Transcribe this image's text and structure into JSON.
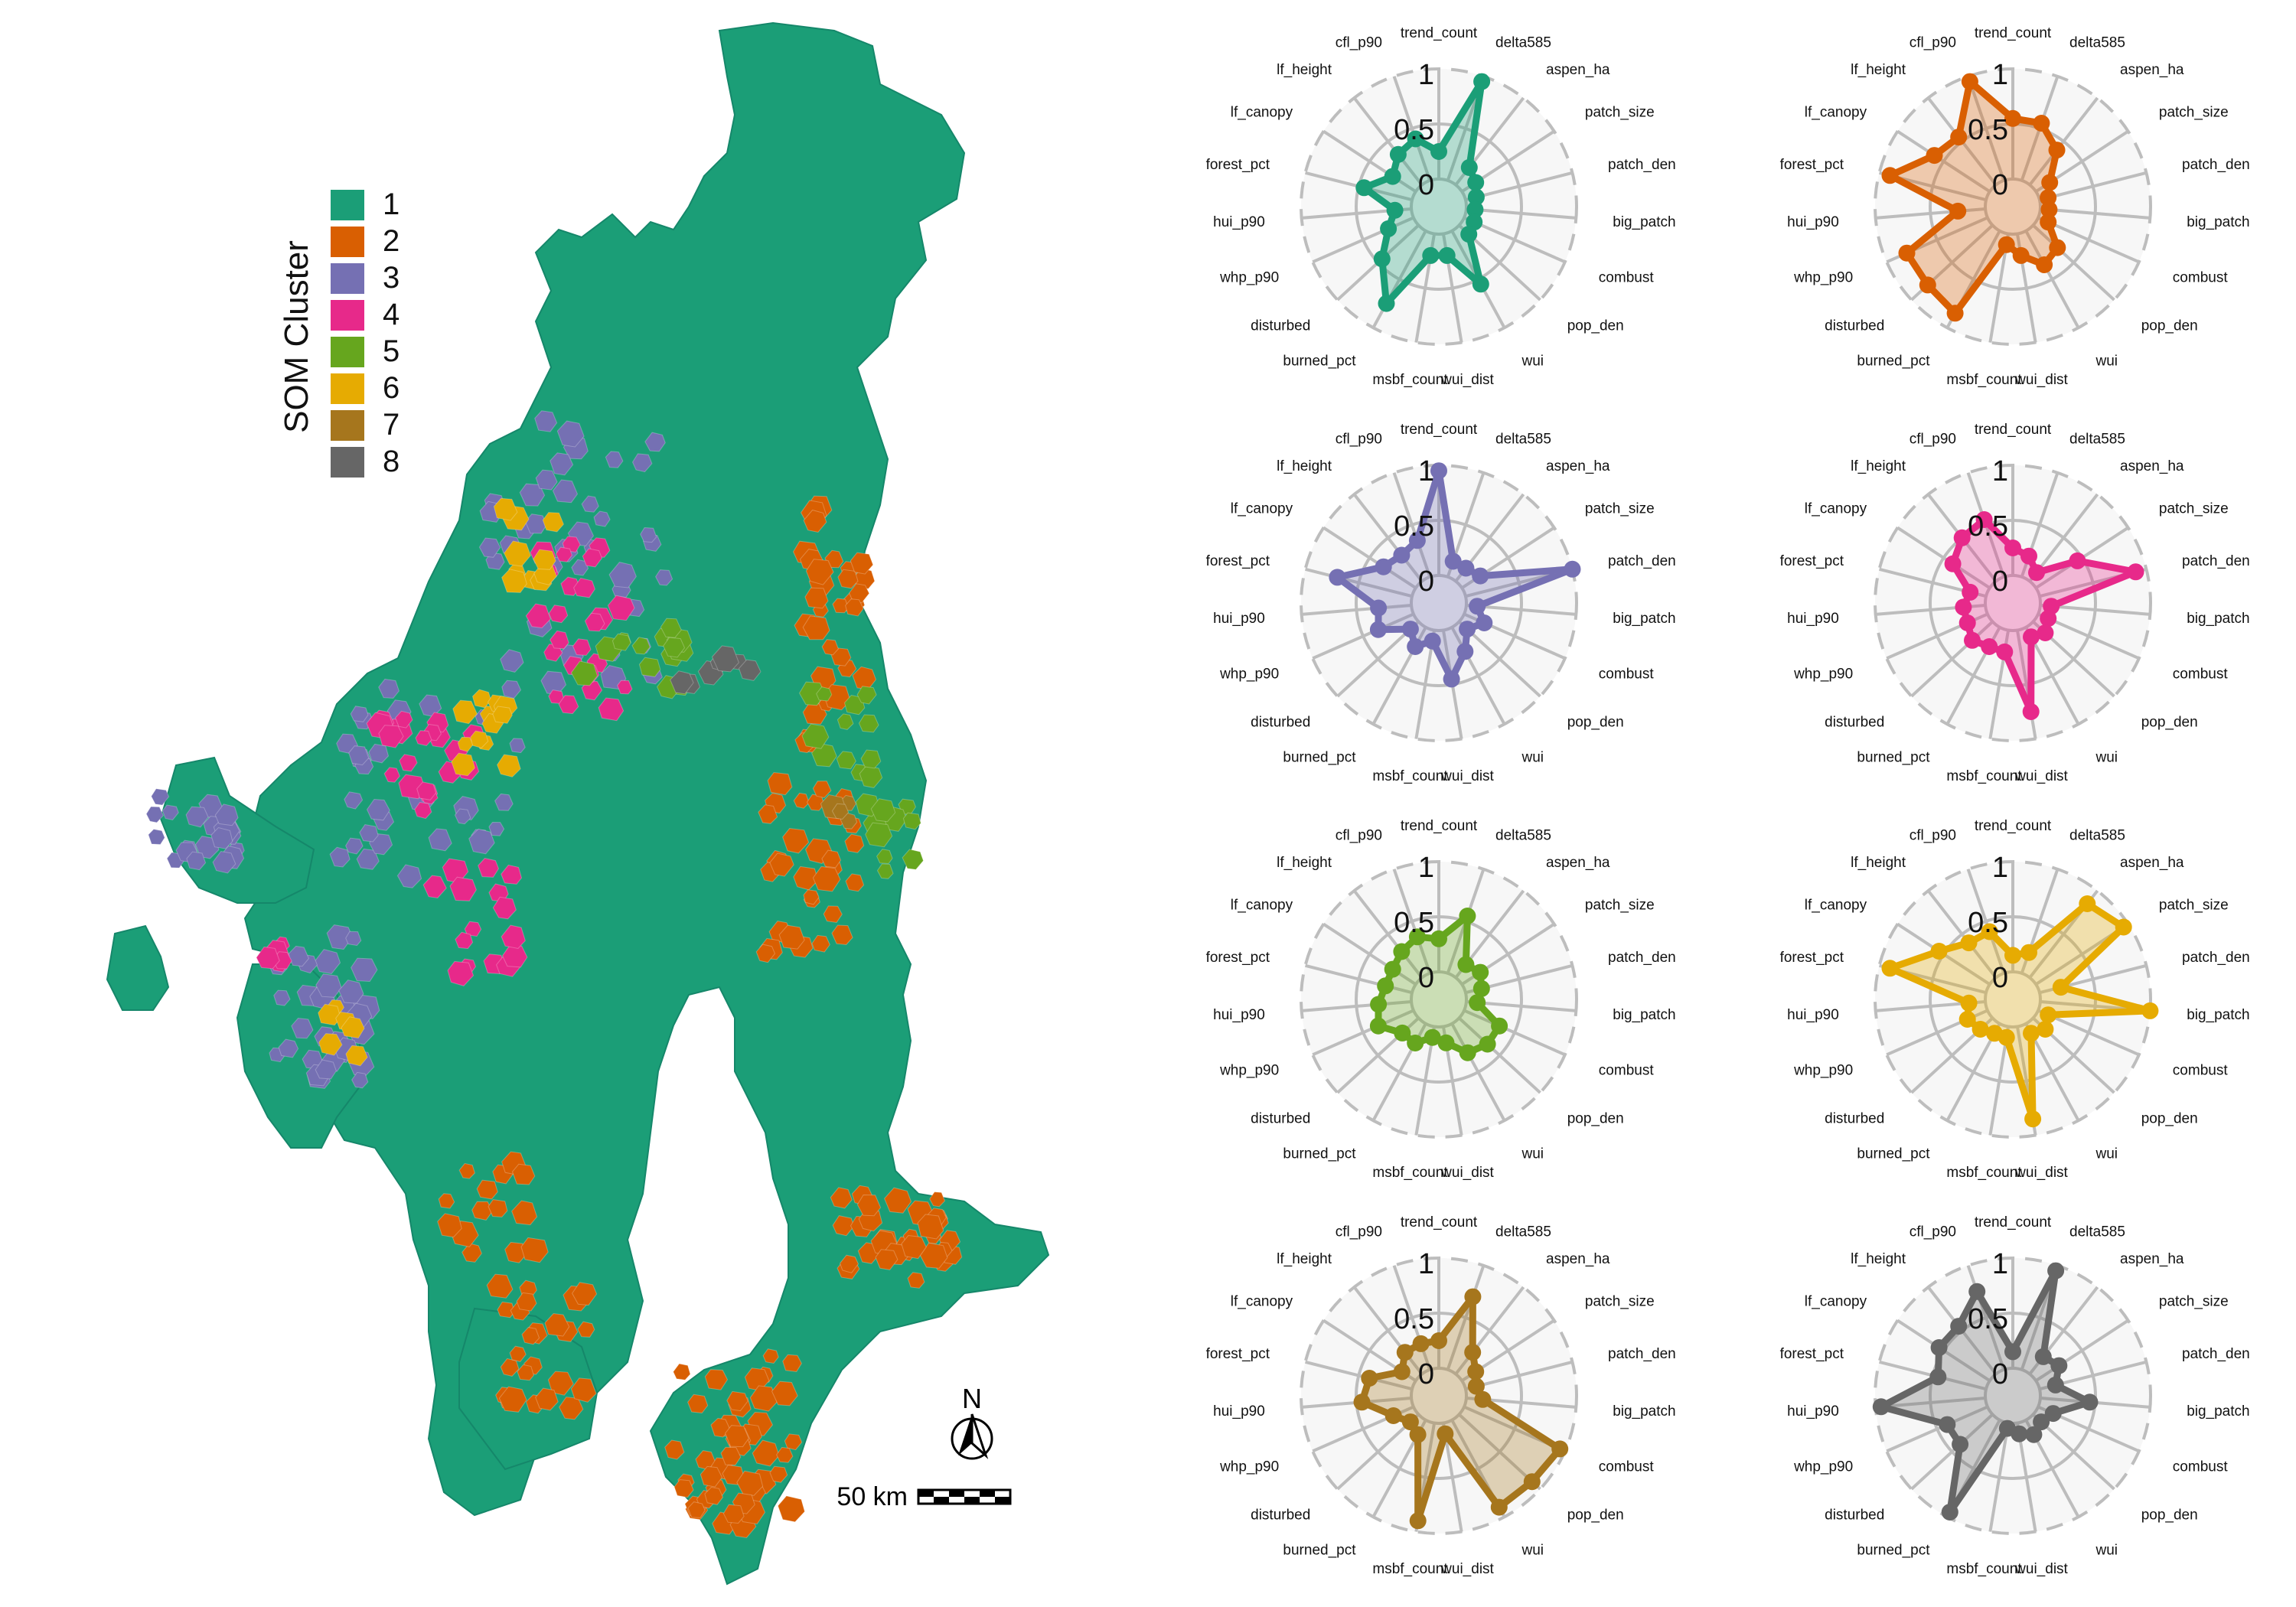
{
  "legend": {
    "title": "SOM Cluster",
    "items": [
      {
        "label": "1",
        "color": "#1b9e77"
      },
      {
        "label": "2",
        "color": "#d95f02"
      },
      {
        "label": "3",
        "color": "#7570b3"
      },
      {
        "label": "4",
        "color": "#e7298a"
      },
      {
        "label": "5",
        "color": "#66a61e"
      },
      {
        "label": "6",
        "color": "#e6ab02"
      },
      {
        "label": "7",
        "color": "#a6761d"
      },
      {
        "label": "8",
        "color": "#666666"
      }
    ]
  },
  "map": {
    "north_label": "N",
    "scale_label": "50 km",
    "background_color": "#1b9e77"
  },
  "chart_data": {
    "type": "radar",
    "axes": [
      "trend_count",
      "delta585",
      "aspen_ha",
      "patch_size",
      "patch_den",
      "big_patch",
      "combust",
      "pop_den",
      "wui",
      "wui_dist",
      "msbf_count",
      "burned_pct",
      "disturbed",
      "whp_p90",
      "hui_p90",
      "forest_pct",
      "lf_canopy",
      "lf_height",
      "cfl_p90"
    ],
    "radial_ticks": [
      "0",
      "0.5",
      "1"
    ],
    "rlim": [
      0,
      1
    ],
    "series": [
      {
        "name": "1",
        "color": "#1b9e77",
        "values": [
          0.25,
          0.95,
          0.2,
          0.15,
          0.1,
          0.08,
          0.1,
          0.12,
          0.55,
          0.2,
          0.2,
          0.75,
          0.45,
          0.25,
          0.15,
          0.45,
          0.25,
          0.35,
          0.4
        ]
      },
      {
        "name": "2",
        "color": "#d95f02",
        "values": [
          0.55,
          0.55,
          0.4,
          0.15,
          0.08,
          0.08,
          0.1,
          0.3,
          0.35,
          0.2,
          0.1,
          0.85,
          0.8,
          0.8,
          0.25,
          0.9,
          0.6,
          0.55,
          0.95
        ]
      },
      {
        "name": "3",
        "color": "#7570b3",
        "values": [
          0.95,
          0.15,
          0.15,
          0.2,
          1.0,
          0.1,
          0.2,
          0.1,
          0.25,
          0.45,
          0.1,
          0.2,
          0.1,
          0.35,
          0.3,
          0.7,
          0.35,
          0.3,
          0.35
        ]
      },
      {
        "name": "4",
        "color": "#e7298a",
        "values": [
          0.25,
          0.2,
          0.1,
          0.45,
          0.9,
          0.1,
          0.1,
          0.15,
          0.1,
          0.75,
          0.2,
          0.2,
          0.25,
          0.2,
          0.2,
          0.15,
          0.4,
          0.5,
          0.55
        ]
      },
      {
        "name": "5",
        "color": "#66a61e",
        "values": [
          0.3,
          0.55,
          0.15,
          0.2,
          0.15,
          0.1,
          0.35,
          0.35,
          0.3,
          0.15,
          0.1,
          0.2,
          0.2,
          0.35,
          0.3,
          0.25,
          0.25,
          0.3,
          0.35
        ]
      },
      {
        "name": "6",
        "color": "#e6ab02",
        "values": [
          0.15,
          0.2,
          0.85,
          0.95,
          0.2,
          1.0,
          0.1,
          0.15,
          0.1,
          0.85,
          0.1,
          0.1,
          0.15,
          0.2,
          0.15,
          0.9,
          0.55,
          0.4,
          0.4
        ]
      },
      {
        "name": "7",
        "color": "#a6761d",
        "values": [
          0.25,
          0.7,
          0.25,
          0.15,
          0.1,
          0.15,
          0.95,
          0.9,
          0.9,
          0.1,
          0.9,
          0.15,
          0.1,
          0.2,
          0.45,
          0.4,
          0.15,
          0.25,
          0.25
        ]
      },
      {
        "name": "8",
        "color": "#666666",
        "values": [
          0.15,
          0.95,
          0.2,
          0.25,
          0.15,
          0.45,
          0.15,
          0.1,
          0.15,
          0.1,
          0.05,
          0.95,
          0.4,
          0.4,
          0.95,
          0.45,
          0.55,
          0.55,
          0.75
        ]
      }
    ]
  }
}
